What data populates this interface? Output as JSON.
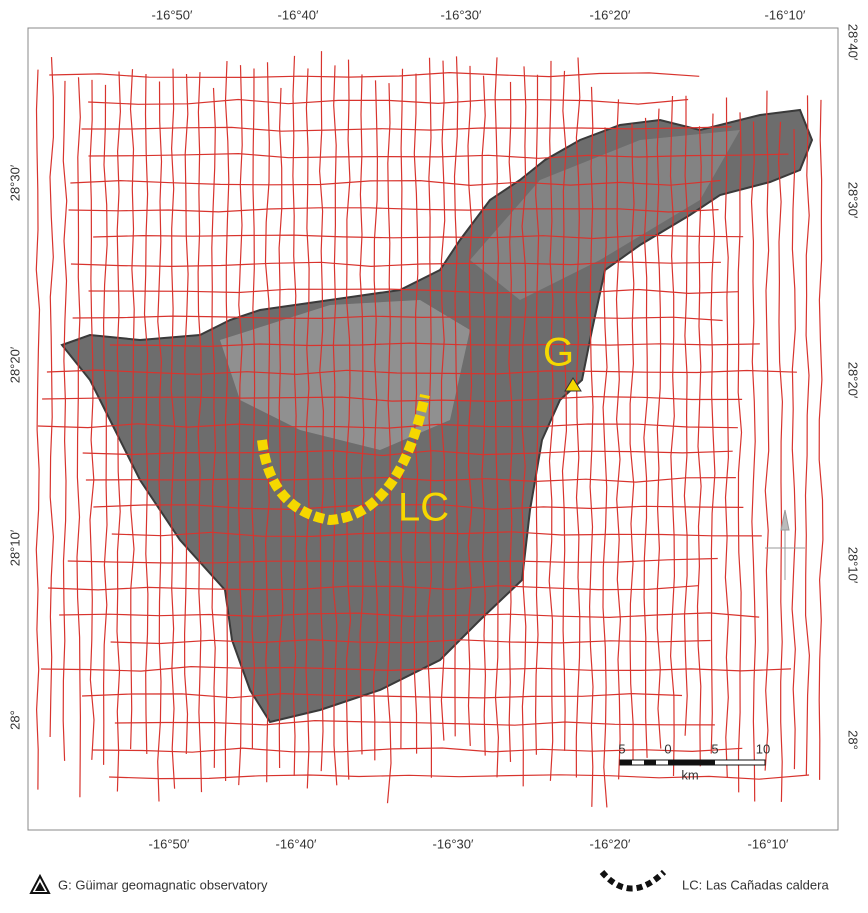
{
  "map": {
    "top_ticks": [
      "-16°50′",
      "-16°40′",
      "-16°30′",
      "-16°20′",
      "-16°10′"
    ],
    "bottom_ticks": [
      "-16°50′",
      "-16°40′",
      "-16°30′",
      "-16°20′",
      "-16°10′"
    ],
    "left_ticks": [
      "28°30′",
      "28°20′",
      "28°10′",
      "28°"
    ],
    "right_ticks": [
      "28°40′",
      "28°30′",
      "28°20′",
      "28°10′",
      "28°"
    ],
    "labels": {
      "observatory": "G",
      "caldera": "LC"
    },
    "scale_bar": {
      "ticks": [
        "5",
        "0",
        "5",
        "10"
      ],
      "unit": "km"
    }
  },
  "legend": {
    "observatory": "G: Güimar geomagnatic observatory",
    "caldera": "LC: Las Cañadas caldera"
  }
}
